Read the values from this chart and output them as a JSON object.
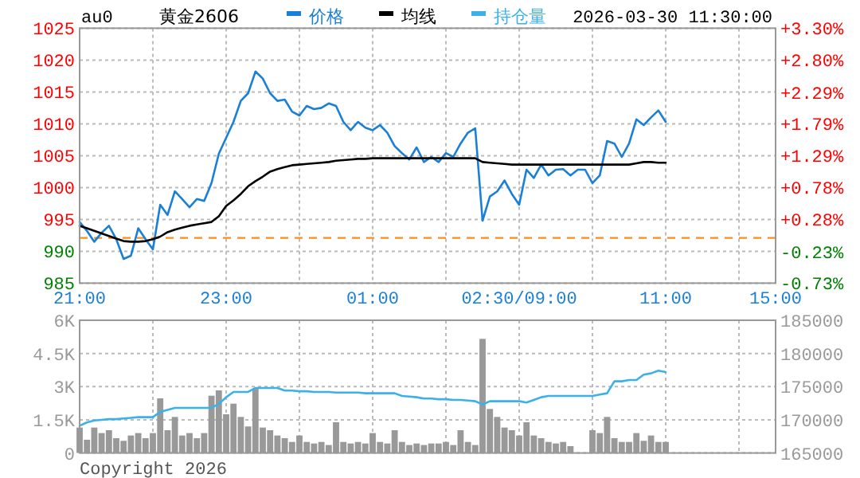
{
  "chart_data": [
    {
      "type": "line",
      "title": "黄金2606",
      "subtitle": "au0",
      "annotations": [
        "2026-03-30 11:30:00"
      ],
      "legend": "top",
      "grid": true,
      "categories": [
        "21:00",
        null,
        null,
        null,
        null,
        null,
        null,
        null,
        null,
        null,
        null,
        null,
        null,
        null,
        null,
        null,
        null,
        null,
        null,
        null,
        "23:00",
        null,
        null,
        null,
        null,
        null,
        null,
        null,
        null,
        null,
        null,
        null,
        null,
        null,
        null,
        null,
        null,
        null,
        null,
        null,
        "01:00",
        null,
        null,
        null,
        null,
        null,
        null,
        null,
        null,
        null,
        null,
        null,
        null,
        null,
        null,
        null,
        null,
        null,
        null,
        null,
        "02:30/09:00",
        null,
        null,
        null,
        null,
        null,
        null,
        null,
        null,
        null,
        null,
        null,
        null,
        null,
        null,
        null,
        null,
        null,
        null,
        null,
        "11:00",
        null,
        null,
        null,
        null,
        null,
        null,
        null,
        null,
        null,
        null,
        null,
        null,
        null,
        null,
        "15:00"
      ],
      "ylim": [
        985,
        1025
      ],
      "yticks": [
        985,
        990,
        995,
        1000,
        1005,
        1010,
        1015,
        1020,
        1025
      ],
      "y2lim": [
        -0.73,
        3.3
      ],
      "y2ticks": [
        {
          "value": -0.73,
          "label": "-0.73%"
        },
        {
          "value": -0.23,
          "label": "-0.23%"
        },
        {
          "value": 0.28,
          "label": "+0.28%"
        },
        {
          "value": 0.78,
          "label": "+0.78%"
        },
        {
          "value": 1.29,
          "label": "+1.29%"
        },
        {
          "value": 1.79,
          "label": "+1.79%"
        },
        {
          "value": 2.29,
          "label": "+2.29%"
        },
        {
          "value": 2.8,
          "label": "+2.80%"
        },
        {
          "value": 3.3,
          "label": "+3.30%"
        }
      ],
      "ref_lines": [
        {
          "axis": "y",
          "value": 992.1,
          "color": "#ff8c1a",
          "line_style": "dashed"
        }
      ],
      "series": [
        {
          "name": "价格",
          "color": "#1a7fd6",
          "values": [
            994.6,
            993.2,
            991.5,
            992.9,
            994.0,
            991.9,
            988.8,
            989.3,
            993.6,
            991.9,
            990.3,
            997.3,
            995.7,
            999.4,
            998.2,
            996.9,
            998.2,
            997.9,
            1000.7,
            1005.3,
            1007.8,
            1010.3,
            1013.6,
            1014.8,
            1018.2,
            1017.1,
            1014.8,
            1013.6,
            1013.8,
            1011.9,
            1011.3,
            1012.8,
            1012.3,
            1012.5,
            1013.2,
            1012.8,
            1010.3,
            1009.0,
            1010.3,
            1009.4,
            1009.0,
            1009.8,
            1008.6,
            1006.5,
            1005.4,
            1004.4,
            1006.3,
            1004.0,
            1004.8,
            1004.0,
            1005.4,
            1004.8,
            1006.9,
            1008.6,
            1009.3,
            994.8,
            998.6,
            999.4,
            1001.1,
            999.0,
            997.3,
            1002.8,
            1001.5,
            1003.6,
            1001.9,
            1002.8,
            1002.9,
            1001.9,
            1002.8,
            1002.8,
            1000.7,
            1001.9,
            1007.3,
            1006.9,
            1004.8,
            1006.9,
            1010.7,
            1009.8,
            1011.0,
            1012.1,
            1010.3,
            null,
            null,
            null,
            null,
            null,
            null,
            null,
            null,
            null,
            null,
            null,
            null,
            null,
            null,
            null
          ]
        },
        {
          "name": "均线",
          "color": "#000000",
          "values": [
            994.0,
            993.6,
            993.2,
            992.8,
            992.4,
            992.0,
            991.6,
            991.5,
            991.5,
            991.6,
            991.9,
            992.3,
            993.0,
            993.4,
            993.7,
            994.0,
            994.2,
            994.4,
            994.6,
            995.5,
            997.1,
            998.0,
            999.0,
            1000.2,
            1001.0,
            1001.7,
            1002.5,
            1002.9,
            1003.2,
            1003.5,
            1003.6,
            1003.7,
            1003.8,
            1003.9,
            1004.0,
            1004.2,
            1004.3,
            1004.4,
            1004.5,
            1004.5,
            1004.6,
            1004.6,
            1004.6,
            1004.6,
            1004.6,
            1004.6,
            1004.6,
            1004.6,
            1004.6,
            1004.6,
            1004.6,
            1004.6,
            1004.6,
            1004.6,
            1004.6,
            1004.0,
            1003.9,
            1003.8,
            1003.7,
            1003.6,
            1003.6,
            1003.6,
            1003.6,
            1003.6,
            1003.6,
            1003.6,
            1003.6,
            1003.6,
            1003.6,
            1003.6,
            1003.6,
            1003.6,
            1003.6,
            1003.6,
            1003.6,
            1003.6,
            1003.8,
            1004.0,
            1004.0,
            1003.9,
            1003.9,
            null,
            null,
            null,
            null,
            null,
            null,
            null,
            null,
            null,
            null,
            null,
            null,
            null,
            null,
            null
          ]
        }
      ]
    },
    {
      "type": "bar",
      "annotations": [
        "Copyright 2026"
      ],
      "legend": "top",
      "grid": true,
      "tick_labels": "y",
      "categories": [
        null,
        null,
        null,
        null,
        null,
        null,
        null,
        null,
        null,
        null,
        null,
        null,
        null,
        null,
        null,
        null,
        null,
        null,
        null,
        null,
        null,
        null,
        null,
        null,
        null,
        null,
        null,
        null,
        null,
        null,
        null,
        null,
        null,
        null,
        null,
        null,
        null,
        null,
        null,
        null,
        null,
        null,
        null,
        null,
        null,
        null,
        null,
        null,
        null,
        null,
        null,
        null,
        null,
        null,
        null,
        null,
        null,
        null,
        null,
        null,
        null,
        null,
        null,
        null,
        null,
        null,
        null,
        null,
        null,
        null,
        null,
        null,
        null,
        null,
        null,
        null,
        null,
        null,
        null,
        null,
        null,
        null,
        null,
        null,
        null,
        null,
        null,
        null,
        null,
        null,
        null,
        null,
        null,
        null,
        null,
        null
      ],
      "ylim": [
        0,
        6000
      ],
      "yticks": [
        0,
        {
          "value": 1500,
          "label": "1.5K"
        },
        {
          "value": 3000,
          "label": "3K"
        },
        {
          "value": 4500,
          "label": "4.5K"
        },
        {
          "value": 6000,
          "label": "6K"
        }
      ],
      "y2lim": [
        165000,
        185000
      ],
      "y2ticks": [
        165000,
        170000,
        175000,
        180000,
        185000
      ],
      "series": [
        {
          "color": "#999999",
          "values": [
            1150,
            600,
            1150,
            900,
            1030,
            670,
            550,
            790,
            900,
            670,
            900,
            2470,
            1030,
            1630,
            790,
            900,
            670,
            900,
            2590,
            2830,
            1750,
            2230,
            1630,
            1200,
            2900,
            1150,
            1030,
            790,
            670,
            500,
            790,
            500,
            430,
            500,
            360,
            1390,
            500,
            430,
            500,
            430,
            900,
            500,
            430,
            1030,
            500,
            360,
            430,
            360,
            430,
            430,
            500,
            360,
            1030,
            500,
            360,
            5160,
            1990,
            1630,
            1150,
            1030,
            790,
            1390,
            790,
            670,
            500,
            430,
            500,
            310,
            null,
            null,
            1030,
            900,
            1630,
            670,
            500,
            500,
            900,
            550,
            790,
            500,
            500,
            null,
            null,
            null,
            null,
            null,
            null,
            null,
            null,
            null,
            null,
            null,
            null,
            null,
            null,
            null
          ]
        },
        {
          "name": "持仓量",
          "type": "line",
          "axis": "y2",
          "color": "#3cb0ea",
          "values": [
            169100,
            169600,
            169900,
            170000,
            170100,
            170100,
            170200,
            170300,
            170400,
            170400,
            170400,
            171200,
            171500,
            171800,
            171800,
            171800,
            171800,
            171800,
            171800,
            172400,
            173400,
            174200,
            174200,
            174200,
            174800,
            174800,
            174800,
            174800,
            174400,
            174400,
            174300,
            174300,
            174200,
            174200,
            174200,
            174100,
            174100,
            174100,
            174100,
            174000,
            174000,
            174000,
            174000,
            174000,
            173600,
            173500,
            173400,
            173200,
            173200,
            173100,
            173100,
            173000,
            173000,
            172900,
            172800,
            172300,
            172800,
            172800,
            172800,
            172800,
            172800,
            172600,
            173000,
            173400,
            173600,
            173600,
            173600,
            173600,
            173600,
            173600,
            173600,
            173800,
            174000,
            175800,
            175800,
            176000,
            176000,
            176800,
            177000,
            177400,
            177200,
            null,
            null,
            null,
            null,
            null,
            null,
            null,
            null,
            null,
            null,
            null,
            null,
            null,
            null,
            null
          ]
        }
      ]
    }
  ]
}
